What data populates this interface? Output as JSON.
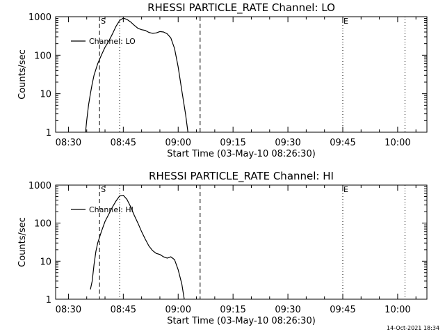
{
  "footer": {
    "timestamp": "14-Oct-2021 18:34"
  },
  "chart_data": [
    {
      "type": "line",
      "title": "RHESSI PARTICLE_RATE Channel: LO",
      "xlabel": "Start Time (03-May-10 08:26:30)",
      "ylabel": "Counts/sec",
      "yscale": "log",
      "ylim": [
        1,
        1000
      ],
      "xlim": [
        "08:26:30",
        "10:08:00"
      ],
      "xticks": [
        "08:30",
        "08:45",
        "09:00",
        "09:15",
        "09:30",
        "09:45",
        "10:00"
      ],
      "yticks": [
        "1",
        "10",
        "100",
        "1000"
      ],
      "legend": {
        "position": "top-left"
      },
      "markers": {
        "start_label": "S",
        "end_label": "E"
      },
      "vlines": [
        {
          "time": "08:38:30",
          "style": "dashed"
        },
        {
          "time": "08:44:00",
          "style": "dotted"
        },
        {
          "time": "09:06:00",
          "style": "dashed"
        },
        {
          "time": "09:45:00",
          "style": "dotted"
        },
        {
          "time": "10:02:00",
          "style": "dotted"
        }
      ],
      "series": [
        {
          "name": "Channel: LO",
          "points": [
            [
              "08:34:40",
              1
            ],
            [
              "08:35:00",
              2
            ],
            [
              "08:35:30",
              5
            ],
            [
              "08:36:00",
              10
            ],
            [
              "08:36:30",
              18
            ],
            [
              "08:37:00",
              30
            ],
            [
              "08:38:00",
              60
            ],
            [
              "08:39:00",
              100
            ],
            [
              "08:40:00",
              160
            ],
            [
              "08:41:00",
              230
            ],
            [
              "08:42:00",
              350
            ],
            [
              "08:43:00",
              560
            ],
            [
              "08:44:00",
              800
            ],
            [
              "08:45:00",
              920
            ],
            [
              "08:46:00",
              850
            ],
            [
              "08:47:00",
              730
            ],
            [
              "08:48:00",
              600
            ],
            [
              "08:49:00",
              500
            ],
            [
              "08:50:00",
              460
            ],
            [
              "08:51:00",
              440
            ],
            [
              "08:52:00",
              390
            ],
            [
              "08:53:00",
              370
            ],
            [
              "08:54:00",
              380
            ],
            [
              "08:55:00",
              410
            ],
            [
              "08:56:00",
              400
            ],
            [
              "08:57:00",
              360
            ],
            [
              "08:58:00",
              280
            ],
            [
              "08:59:00",
              150
            ],
            [
              "09:00:00",
              50
            ],
            [
              "09:01:00",
              12
            ],
            [
              "09:02:00",
              3
            ],
            [
              "09:02:40",
              1
            ]
          ]
        }
      ]
    },
    {
      "type": "line",
      "title": "RHESSI PARTICLE_RATE Channel: HI",
      "xlabel": "Start Time (03-May-10 08:26:30)",
      "ylabel": "Counts/sec",
      "yscale": "log",
      "ylim": [
        1,
        1000
      ],
      "xlim": [
        "08:26:30",
        "10:08:00"
      ],
      "xticks": [
        "08:30",
        "08:45",
        "09:00",
        "09:15",
        "09:30",
        "09:45",
        "10:00"
      ],
      "yticks": [
        "1",
        "10",
        "100",
        "1000"
      ],
      "legend": {
        "position": "top-left"
      },
      "markers": {
        "start_label": "S",
        "end_label": "E"
      },
      "vlines": [
        {
          "time": "08:38:30",
          "style": "dashed"
        },
        {
          "time": "08:44:00",
          "style": "dotted"
        },
        {
          "time": "09:06:00",
          "style": "dashed"
        },
        {
          "time": "09:45:00",
          "style": "dotted"
        },
        {
          "time": "10:02:00",
          "style": "dotted"
        }
      ],
      "series": [
        {
          "name": "Channel: HI",
          "points": [
            [
              "08:36:00",
              1.8
            ],
            [
              "08:36:30",
              3
            ],
            [
              "08:37:00",
              8
            ],
            [
              "08:37:30",
              18
            ],
            [
              "08:38:00",
              30
            ],
            [
              "08:39:00",
              60
            ],
            [
              "08:40:00",
              110
            ],
            [
              "08:41:00",
              170
            ],
            [
              "08:42:00",
              260
            ],
            [
              "08:43:00",
              380
            ],
            [
              "08:44:00",
              520
            ],
            [
              "08:45:00",
              540
            ],
            [
              "08:46:00",
              420
            ],
            [
              "08:47:00",
              270
            ],
            [
              "08:48:00",
              160
            ],
            [
              "08:49:00",
              100
            ],
            [
              "08:50:00",
              60
            ],
            [
              "08:51:00",
              38
            ],
            [
              "08:52:00",
              25
            ],
            [
              "08:53:00",
              19
            ],
            [
              "08:54:00",
              16
            ],
            [
              "08:55:00",
              15
            ],
            [
              "08:56:00",
              13
            ],
            [
              "08:57:00",
              12
            ],
            [
              "08:58:00",
              13
            ],
            [
              "08:59:00",
              11
            ],
            [
              "09:00:00",
              6
            ],
            [
              "09:01:00",
              2.5
            ],
            [
              "09:01:40",
              1
            ]
          ]
        }
      ]
    }
  ]
}
